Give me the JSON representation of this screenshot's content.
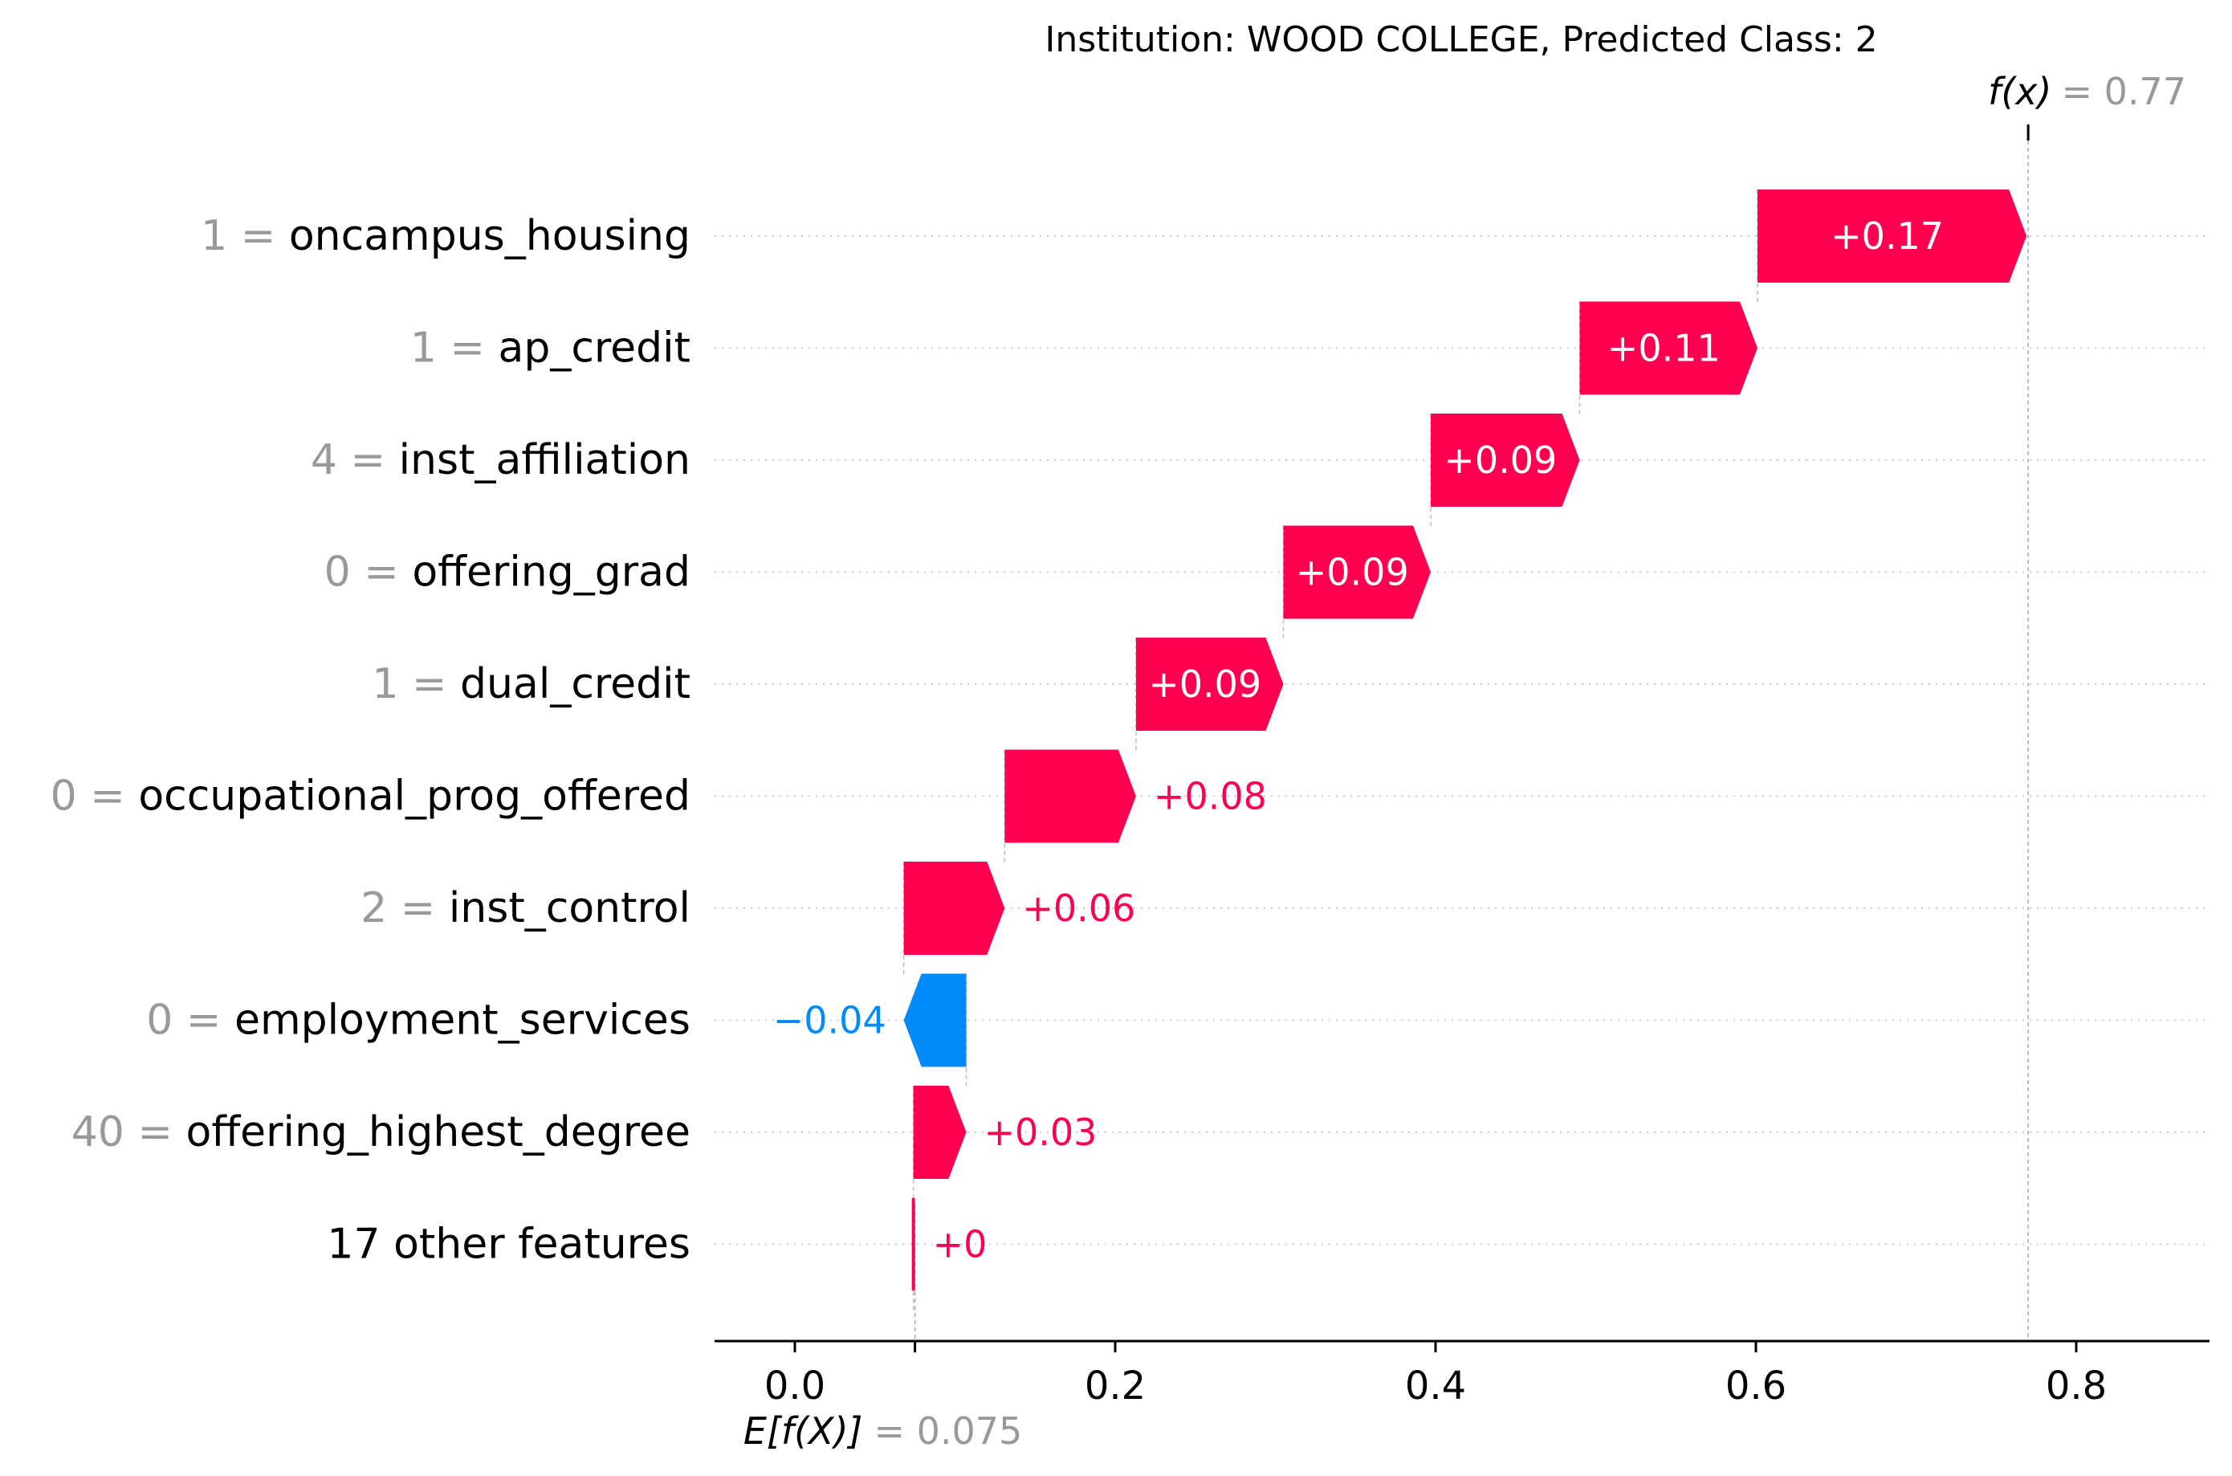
{
  "chart_data": {
    "type": "waterfall",
    "title": "Institution: WOOD COLLEGE, Predicted Class: 2",
    "base_value": 0.075,
    "base_label": "E[f(X)]",
    "base_value_text": "= 0.075",
    "output_value": 0.77,
    "output_label": "f(x)",
    "output_value_text": "= 0.77",
    "xlim": [
      -0.05,
      0.89
    ],
    "x_ticks": [
      0.0,
      0.2,
      0.4,
      0.6,
      0.8
    ],
    "x_tick_labels": [
      "0.0",
      "0.2",
      "0.4",
      "0.6",
      "0.8"
    ],
    "grid": "horizontal dotted",
    "features": [
      {
        "value": "1",
        "name": "oncampus_housing",
        "contribution": 0.17,
        "start": 0.601,
        "end": 0.769,
        "label": "+0.17"
      },
      {
        "value": "1",
        "name": "ap_credit",
        "contribution": 0.11,
        "start": 0.49,
        "end": 0.601,
        "label": "+0.11"
      },
      {
        "value": "4",
        "name": "inst_affiliation",
        "contribution": 0.09,
        "start": 0.397,
        "end": 0.49,
        "label": "+0.09"
      },
      {
        "value": "0",
        "name": "offering_grad",
        "contribution": 0.09,
        "start": 0.305,
        "end": 0.397,
        "label": "+0.09"
      },
      {
        "value": "1",
        "name": "dual_credit",
        "contribution": 0.09,
        "start": 0.213,
        "end": 0.305,
        "label": "+0.09"
      },
      {
        "value": "0",
        "name": "occupational_prog_offered",
        "contribution": 0.08,
        "start": 0.131,
        "end": 0.213,
        "label": "+0.08"
      },
      {
        "value": "2",
        "name": "inst_control",
        "contribution": 0.06,
        "start": 0.068,
        "end": 0.131,
        "label": "+0.06"
      },
      {
        "value": "0",
        "name": "employment_services",
        "contribution": -0.04,
        "start": 0.107,
        "end": 0.068,
        "label": "−0.04"
      },
      {
        "value": "40",
        "name": "offering_highest_degree",
        "contribution": 0.03,
        "start": 0.074,
        "end": 0.107,
        "label": "+0.03"
      },
      {
        "value": "",
        "name": "17 other features",
        "contribution": 0.0,
        "start": 0.074,
        "end": 0.075,
        "label": "+0"
      }
    ],
    "colors": {
      "positive": "#ff0051",
      "negative": "#008bfb",
      "value_gray": "#999999",
      "text": "#000000",
      "grid": "#cccccc"
    }
  }
}
